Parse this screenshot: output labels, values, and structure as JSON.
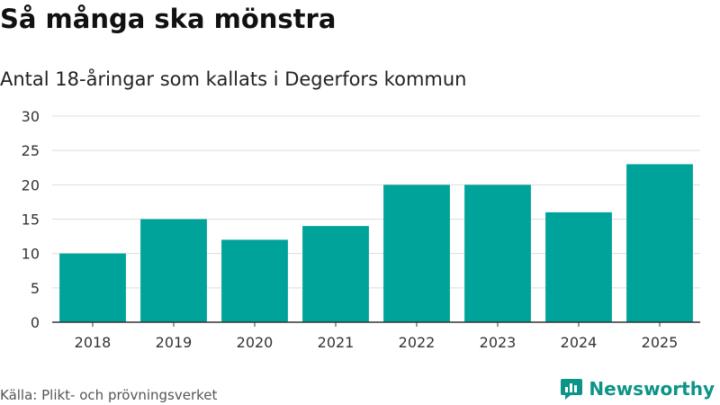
{
  "header": {
    "title": "Så många ska mönstra",
    "subtitle": "Antal 18-åringar som kallats i Degerfors kommun"
  },
  "footer": {
    "source": "Källa: Plikt- och prövningsverket",
    "brand": "Newsworthy",
    "brand_icon": "bar-chart-logo-icon"
  },
  "colors": {
    "bar": "#00a39a",
    "grid": "#dddddd",
    "axis": "#333333",
    "brand": "#0d9488"
  },
  "chart_data": {
    "type": "bar",
    "categories": [
      "2018",
      "2019",
      "2020",
      "2021",
      "2022",
      "2023",
      "2024",
      "2025"
    ],
    "values": [
      10,
      15,
      12,
      14,
      20,
      20,
      16,
      23
    ],
    "title": "Så många ska mönstra",
    "subtitle": "Antal 18-åringar som kallats i Degerfors kommun",
    "xlabel": "",
    "ylabel": "",
    "ylim": [
      0,
      30
    ],
    "yticks": [
      "0",
      "5",
      "10",
      "15",
      "20",
      "25",
      "30"
    ],
    "grid": true,
    "legend": "none"
  }
}
